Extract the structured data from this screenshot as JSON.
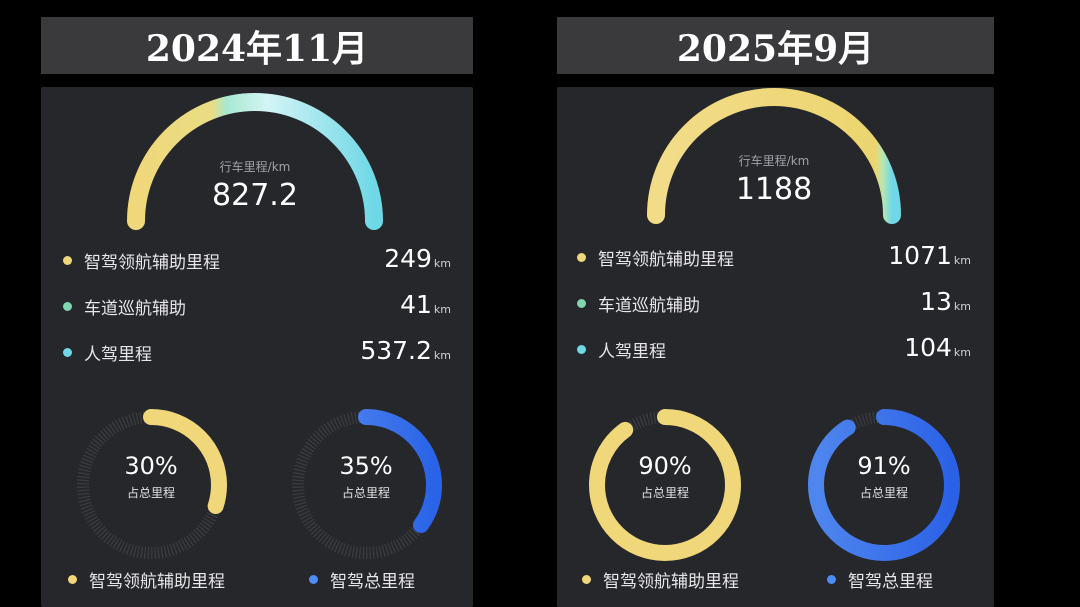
{
  "left": {
    "title": "2024年11月",
    "gauge": {
      "label": "行车里程/km",
      "value": "827.2"
    },
    "legend": [
      {
        "name": "智驾领航辅助里程",
        "value": "249",
        "unit": "km",
        "color": "#f0d77a"
      },
      {
        "name": "车道巡航辅助",
        "value": "41",
        "unit": "km",
        "color": "#7fd6b0"
      },
      {
        "name": "人驾里程",
        "value": "537.2",
        "unit": "km",
        "color": "#6fd8e6"
      }
    ],
    "donut1": {
      "percent": "30%",
      "fraction": 0.3,
      "sub": "占总里程",
      "color": "#f0d77a"
    },
    "donut2": {
      "percent": "35%",
      "fraction": 0.35,
      "sub": "占总里程",
      "color": "#3f7cf0"
    },
    "bottom_legend": [
      {
        "name": "智驾领航辅助里程",
        "color": "#f0d77a"
      },
      {
        "name": "智驾总里程",
        "color": "#4d8cf5"
      }
    ]
  },
  "right": {
    "title": "2025年9月",
    "gauge": {
      "label": "行车里程/km",
      "value": "1188"
    },
    "legend": [
      {
        "name": "智驾领航辅助里程",
        "value": "1071",
        "unit": "km",
        "color": "#f0d77a"
      },
      {
        "name": "车道巡航辅助",
        "value": "13",
        "unit": "km",
        "color": "#7fd6b0"
      },
      {
        "name": "人驾里程",
        "value": "104",
        "unit": "km",
        "color": "#6fd8e6"
      }
    ],
    "donut1": {
      "percent": "90%",
      "fraction": 0.9,
      "sub": "占总里程",
      "color": "#f0d77a"
    },
    "donut2": {
      "percent": "91%",
      "fraction": 0.91,
      "sub": "占总里程",
      "color": "#3f7cf0"
    },
    "bottom_legend": [
      {
        "name": "智驾领航辅助里程",
        "color": "#f0d77a"
      },
      {
        "name": "智驾总里程",
        "color": "#4d8cf5"
      }
    ]
  }
}
